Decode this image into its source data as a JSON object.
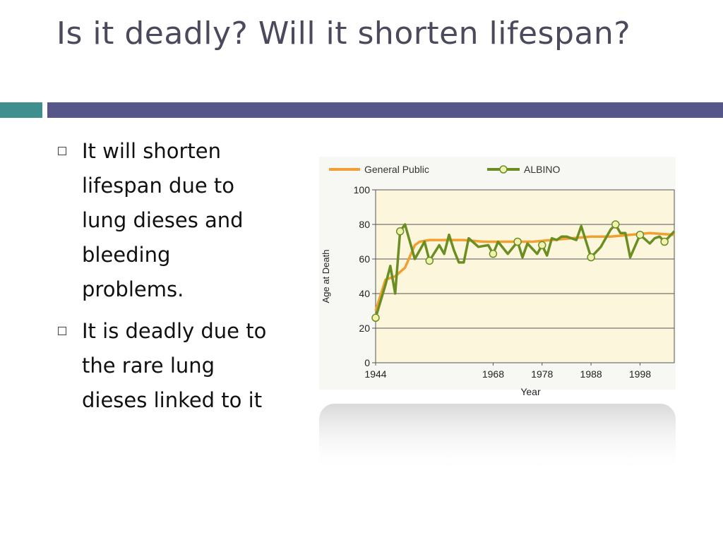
{
  "slide": {
    "title": "Is it deadly? Will it shorten lifespan?",
    "bullets": [
      "It will shorten lifespan due to lung dieses and bleeding problems.",
      "It is deadly due to the rare lung dieses linked to it"
    ]
  },
  "colors": {
    "accent_teal": "#3f8f8e",
    "accent_navy": "#56568a",
    "general_public": "#f0a030",
    "albino": "#6b8e23",
    "plot_bg": "#fbf6dc"
  },
  "chart_data": {
    "type": "line",
    "xlabel": "Year",
    "ylabel": "Age at Death",
    "ylim": [
      0,
      100
    ],
    "xlim": [
      1944,
      2005
    ],
    "yticks": [
      "0",
      "20",
      "40",
      "60",
      "80",
      "100"
    ],
    "xticks": [
      {
        "label": "1944",
        "value": 1944
      },
      {
        "label": "1968",
        "value": 1968
      },
      {
        "label": "1978",
        "value": 1978
      },
      {
        "label": "1988",
        "value": 1988
      },
      {
        "label": "1998",
        "value": 1998
      }
    ],
    "legend_position": "top",
    "grid": true,
    "series": [
      {
        "name": "General Public",
        "color": "#f0a030",
        "x": [
          1944,
          1946,
          1948,
          1950,
          1952,
          1953,
          1955,
          1958,
          1962,
          1966,
          1968,
          1972,
          1976,
          1980,
          1984,
          1988,
          1992,
          1996,
          2000,
          2005
        ],
        "y": [
          30,
          48,
          50,
          55,
          68,
          70,
          71,
          71,
          71,
          70,
          70,
          70,
          70,
          71,
          72,
          73,
          73,
          74,
          75,
          74
        ]
      },
      {
        "name": "ALBINO",
        "color": "#6b8e23",
        "x": [
          1944,
          1946,
          1947,
          1948,
          1949,
          1950,
          1952,
          1954,
          1955,
          1957,
          1958,
          1959,
          1960,
          1961,
          1962,
          1963,
          1965,
          1967,
          1968,
          1969,
          1971,
          1973,
          1974,
          1975,
          1977,
          1978,
          1979,
          1980,
          1981,
          1982,
          1983,
          1985,
          1986,
          1988,
          1990,
          1992,
          1993,
          1994,
          1995,
          1996,
          1998,
          2000,
          2001,
          2002,
          2003,
          2005
        ],
        "y": [
          26,
          45,
          56,
          40,
          76,
          80,
          60,
          70,
          59,
          68,
          63,
          74,
          65,
          58,
          58,
          72,
          67,
          68,
          63,
          70,
          63,
          70,
          61,
          69,
          63,
          68,
          62,
          72,
          71,
          73,
          73,
          71,
          79,
          61,
          67,
          77,
          80,
          75,
          75,
          61,
          74,
          69,
          72,
          73,
          70,
          76
        ],
        "markers_at": [
          1944,
          1949,
          1955,
          1968,
          1973,
          1978,
          1984,
          1988,
          1993,
          1998,
          2003
        ]
      }
    ]
  }
}
